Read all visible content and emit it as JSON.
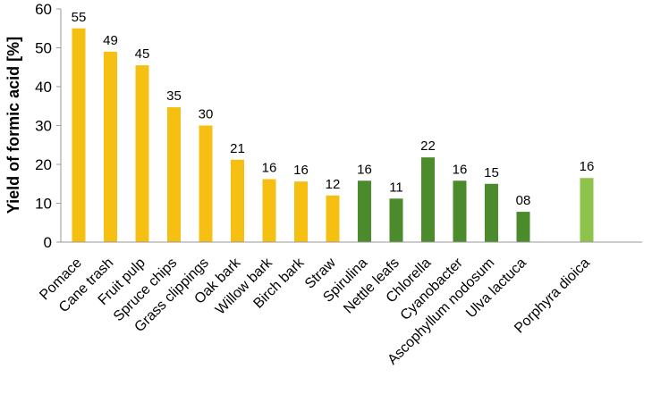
{
  "chart_data": {
    "type": "bar",
    "title": "",
    "xlabel": "",
    "ylabel": "Yield of formic acid [%]",
    "ylim": [
      0,
      60
    ],
    "yticks": [
      0,
      10,
      20,
      30,
      40,
      50,
      60
    ],
    "grid": false,
    "legend": "none",
    "categories": [
      "Pomace",
      "Cane trash",
      "Fruit pulp",
      "Spruce chips",
      "Grass clippings",
      "Oak bark",
      "Willow bark",
      "Birch bark",
      "Straw",
      "Spirulina",
      "Nettle leafs",
      "Chlorella",
      "Cyanobacter",
      "Ascophyllum nodosum",
      "Ulva lactuca",
      "",
      "Porphyra dioica"
    ],
    "values": [
      55,
      49,
      45.5,
      34.7,
      30,
      21.2,
      16.2,
      15.6,
      12,
      15.8,
      11.2,
      21.8,
      15.8,
      15,
      7.8,
      null,
      16.5
    ],
    "data_labels": [
      "55",
      "49",
      "45",
      "35",
      "30",
      "21",
      "16",
      "16",
      "12",
      "16",
      "11",
      "22",
      "16",
      "15",
      "08",
      "",
      "16"
    ],
    "bar_colors": [
      "#F5C011",
      "#F5C011",
      "#F5C011",
      "#F5C011",
      "#F5C011",
      "#F5C011",
      "#F5C011",
      "#F5C011",
      "#F5C011",
      "#4B8B2B",
      "#4B8B2B",
      "#4B8B2B",
      "#4B8B2B",
      "#4B8B2B",
      "#4B8B2B",
      "",
      "#8DC34A"
    ]
  }
}
